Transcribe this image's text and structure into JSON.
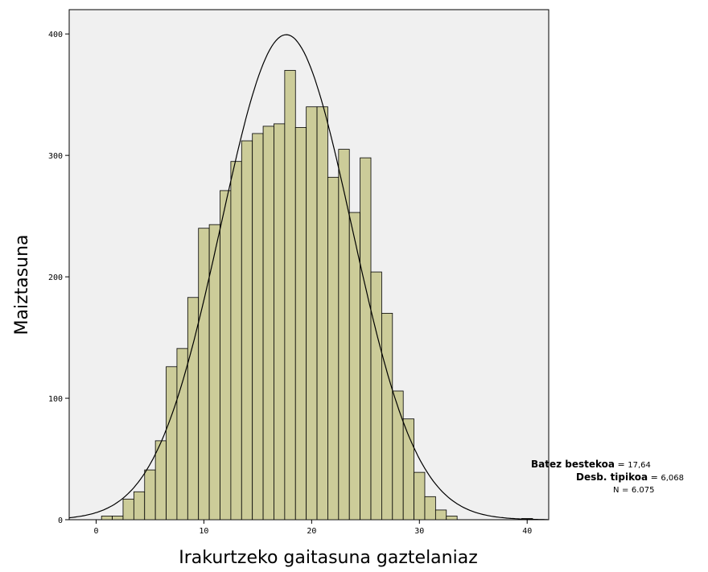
{
  "chart_data": {
    "type": "bar",
    "title": "",
    "xlabel": "Irakurtzeko gaitasuna gaztelaniaz",
    "ylabel": "Maiztasuna",
    "xlim": [
      -2.5,
      42
    ],
    "ylim": [
      0,
      420
    ],
    "x_ticks": [
      "0",
      "10",
      "20",
      "30",
      "40"
    ],
    "y_ticks": [
      "0",
      "100",
      "200",
      "300",
      "400"
    ],
    "bin_width": 1,
    "bar_color": "#cccc99",
    "plot_background": "#f0f0f0",
    "grid": false,
    "bins": [
      {
        "x": 1,
        "y": 3
      },
      {
        "x": 2,
        "y": 3
      },
      {
        "x": 3,
        "y": 17
      },
      {
        "x": 4,
        "y": 23
      },
      {
        "x": 5,
        "y": 41
      },
      {
        "x": 6,
        "y": 65
      },
      {
        "x": 7,
        "y": 126
      },
      {
        "x": 8,
        "y": 141
      },
      {
        "x": 9,
        "y": 183
      },
      {
        "x": 10,
        "y": 240
      },
      {
        "x": 11,
        "y": 243
      },
      {
        "x": 12,
        "y": 271
      },
      {
        "x": 13,
        "y": 295
      },
      {
        "x": 14,
        "y": 312
      },
      {
        "x": 15,
        "y": 318
      },
      {
        "x": 16,
        "y": 324
      },
      {
        "x": 17,
        "y": 326
      },
      {
        "x": 18,
        "y": 370
      },
      {
        "x": 19,
        "y": 323
      },
      {
        "x": 20,
        "y": 340
      },
      {
        "x": 21,
        "y": 340
      },
      {
        "x": 22,
        "y": 282
      },
      {
        "x": 23,
        "y": 305
      },
      {
        "x": 24,
        "y": 253
      },
      {
        "x": 25,
        "y": 298
      },
      {
        "x": 26,
        "y": 204
      },
      {
        "x": 27,
        "y": 170
      },
      {
        "x": 28,
        "y": 106
      },
      {
        "x": 29,
        "y": 83
      },
      {
        "x": 30,
        "y": 39
      },
      {
        "x": 31,
        "y": 19
      },
      {
        "x": 32,
        "y": 8
      },
      {
        "x": 33,
        "y": 3
      },
      {
        "x": 40,
        "y": 1
      }
    ],
    "normal_curve": {
      "mean": 17.64,
      "sd": 6.068,
      "n": 6075
    }
  },
  "stats": {
    "mean_label": "Batez bestekoa",
    "mean_value": "17,64",
    "sd_label": "Desb. tipikoa",
    "sd_value": "6,068",
    "n_label": "N",
    "n_value": "6.075"
  }
}
